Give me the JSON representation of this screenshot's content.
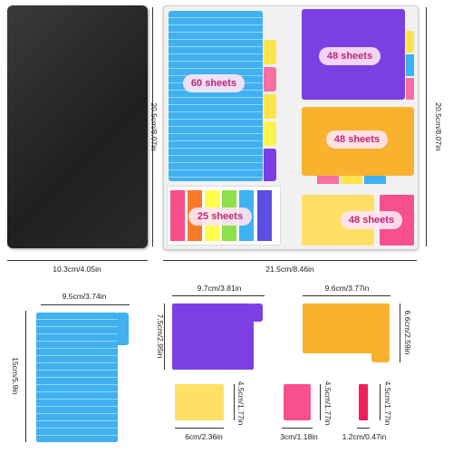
{
  "colors": {
    "blue": "#3fb0f0",
    "purple": "#7b3fe4",
    "orange": "#f8b22e",
    "yellow": "#ffe066",
    "pink": "#f8508f",
    "green": "#9be34a",
    "lime": "#ffff4d",
    "folder": "#2b2b2b",
    "organizer": "#f2f2f2",
    "label_text": "#c0267a"
  },
  "labels": {
    "sheets_blue": "60 sheets",
    "sheets_purple": "48 sheets",
    "sheets_orange": "48 sheets",
    "sheets_flags": "25 sheets",
    "sheets_yellow": "48 sheets"
  },
  "dimensions": {
    "folder_height": "20.5cm/8.07in",
    "folder_width": "10.3cm/4.05in",
    "organizer_height": "20.5cm/8.07in",
    "organizer_width": "21.5cm/8.46in",
    "blue_width": "9.5cm/3.74in",
    "blue_height": "15cm/5.9in",
    "purple_width": "9.7cm/3.81in",
    "purple_height": "7.5cm/2.95in",
    "orange_width": "9.6cm/3.77in",
    "orange_height": "6.6cm/2.59in",
    "yellow_width": "6cm/2.36in",
    "yellow_height": "4.5cm/1.77in",
    "pink_width": "3cm/1.18in",
    "pink_height": "4.5cm/1.77in",
    "flag_width": "1.2cm/0.47in",
    "flag_height": "4.5cm/1.77in"
  }
}
